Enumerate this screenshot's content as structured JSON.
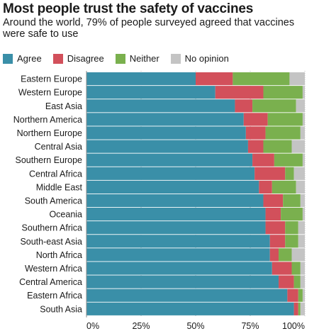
{
  "header": {
    "title": "Most people trust the safety of vaccines",
    "subtitle": "Around the world, 79% of people surveyed agreed that vaccines were safe to use"
  },
  "chart_data": {
    "type": "bar",
    "orientation": "horizontal",
    "stacked": true,
    "title": "Most people trust the safety of vaccines",
    "subtitle": "Around the world, 79% of people surveyed agreed that vaccines were safe to use",
    "xlabel": "",
    "ylabel": "",
    "xlim": [
      0,
      100
    ],
    "x_ticks": [
      "0%",
      "25%",
      "50%",
      "75%",
      "100%"
    ],
    "x_tick_values": [
      0,
      25,
      50,
      75,
      100
    ],
    "grid": true,
    "legend_position": "top-left",
    "categories": [
      "Eastern Europe",
      "Western Europe",
      "East Asia",
      "Northern America",
      "Northern Europe",
      "Central Asia",
      "Southern Europe",
      "Central Africa",
      "Middle East",
      "South America",
      "Oceania",
      "Southern Africa",
      "South-east Asia",
      "North Africa",
      "Western Africa",
      "Central America",
      "Eastern Africa",
      "South Asia"
    ],
    "series": [
      {
        "name": "Agree",
        "color": "#3a8fa8",
        "values": [
          50,
          59,
          68,
          72,
          73,
          74,
          76,
          77,
          79,
          81,
          82,
          82,
          84,
          84,
          85,
          88,
          92,
          95
        ]
      },
      {
        "name": "Disagree",
        "color": "#d2505b",
        "values": [
          17,
          22,
          8,
          11,
          9,
          7,
          10,
          14,
          6,
          9,
          7,
          9,
          7,
          4,
          9,
          7,
          5,
          2
        ]
      },
      {
        "name": "Neither",
        "color": "#7ab04e",
        "values": [
          26,
          18,
          20,
          16,
          16,
          13,
          13,
          4,
          11,
          8,
          10,
          6,
          6,
          6,
          4,
          3,
          2,
          1
        ]
      },
      {
        "name": "No opinion",
        "color": "#c4c4c4",
        "values": [
          7,
          1,
          4,
          1,
          2,
          6,
          1,
          5,
          4,
          2,
          1,
          3,
          3,
          6,
          2,
          2,
          1,
          2
        ]
      }
    ]
  }
}
